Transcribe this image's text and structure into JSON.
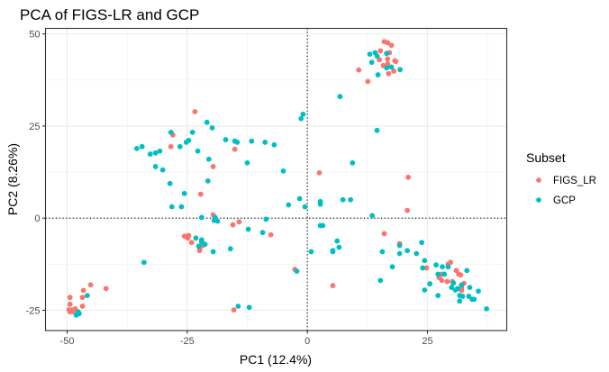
{
  "chart_data": {
    "type": "scatter",
    "title": "PCA of FIGS-LR and GCP",
    "xlabel": "PC1 (12.4%)",
    "ylabel": "PC2 (8.26%)",
    "xlim": [
      -54.5,
      41.5
    ],
    "ylim": [
      -30.5,
      51.5
    ],
    "x_ticks": [
      -50,
      -25,
      0,
      25
    ],
    "x_tick_labels": [
      "-50",
      "-25",
      "0",
      "25"
    ],
    "y_ticks": [
      -25,
      0,
      25,
      50
    ],
    "y_tick_labels": [
      "-25",
      "0",
      "25",
      "50"
    ],
    "grid": true,
    "reference_lines": {
      "x": 0,
      "y": 0,
      "style": "dotted"
    },
    "legend": {
      "title": "Subset",
      "placement": "right",
      "entries": [
        {
          "label": "FIGS_LR",
          "color": "#F8766D"
        },
        {
          "label": "GCP",
          "color": "#00BFC4"
        }
      ]
    },
    "series": [
      {
        "name": "FIGS_LR",
        "color": "#F8766D",
        "points": [
          [
            16.0,
            47.9
          ],
          [
            16.7,
            47.6
          ],
          [
            17.5,
            46.9
          ],
          [
            15.2,
            45.4
          ],
          [
            17.1,
            44.9
          ],
          [
            15.0,
            43.0
          ],
          [
            16.7,
            43.2
          ],
          [
            18.2,
            42.7
          ],
          [
            18.4,
            42.5
          ],
          [
            15.8,
            41.4
          ],
          [
            16.7,
            41.9
          ],
          [
            10.7,
            40.2
          ],
          [
            18.0,
            39.9
          ],
          [
            16.9,
            39.2
          ],
          [
            12.6,
            37.1
          ],
          [
            -23.4,
            28.9
          ],
          [
            -28.0,
            22.6
          ],
          [
            -28.4,
            19.4
          ],
          [
            -15.1,
            18.7
          ],
          [
            -19.6,
            14.0
          ],
          [
            -22.2,
            6.5
          ],
          [
            -19.6,
            0.9
          ],
          [
            2.5,
            12.3
          ],
          [
            21.0,
            11.1
          ],
          [
            20.8,
            2.1
          ],
          [
            -15.5,
            -1.8
          ],
          [
            -14.2,
            -1.0
          ],
          [
            -7.6,
            -4.5
          ],
          [
            -25.6,
            -4.9
          ],
          [
            -25.1,
            -4.9
          ],
          [
            -24.7,
            -4.7
          ],
          [
            -24.9,
            -5.4
          ],
          [
            -24.1,
            -6.6
          ],
          [
            -21.7,
            -7.4
          ],
          [
            -22.4,
            -8.3
          ],
          [
            -22.4,
            -8.8
          ],
          [
            -2.6,
            -13.9
          ],
          [
            -15.3,
            -24.9
          ],
          [
            16.0,
            -4.2
          ],
          [
            19.2,
            -6.9
          ],
          [
            5.3,
            -18.3
          ],
          [
            24.8,
            -13.5
          ],
          [
            29.3,
            -12.5
          ],
          [
            29.8,
            -12.0
          ],
          [
            31.0,
            -14.2
          ],
          [
            31.5,
            -15.2
          ],
          [
            31.9,
            -15.4
          ],
          [
            28.0,
            -15.2
          ],
          [
            27.4,
            -16.1
          ],
          [
            28.0,
            -16.9
          ],
          [
            29.1,
            -17.2
          ],
          [
            30.2,
            -17.2
          ],
          [
            32.6,
            -17.7
          ],
          [
            32.1,
            -18.9
          ],
          [
            32.1,
            -19.6
          ],
          [
            -45.1,
            -18.1
          ],
          [
            -41.9,
            -19.1
          ],
          [
            -46.6,
            -19.6
          ],
          [
            -49.4,
            -21.5
          ],
          [
            -46.8,
            -21.5
          ],
          [
            -49.4,
            -23.4
          ],
          [
            -46.8,
            -23.9
          ],
          [
            -49.6,
            -24.9
          ],
          [
            -49.0,
            -24.9
          ],
          [
            -48.3,
            -24.6
          ],
          [
            -49.4,
            -25.4
          ],
          [
            -48.8,
            -25.4
          ]
        ]
      },
      {
        "name": "GCP",
        "color": "#00BFC4",
        "points": [
          [
            13.0,
            44.5
          ],
          [
            14.1,
            44.9
          ],
          [
            14.5,
            44.0
          ],
          [
            16.5,
            44.7
          ],
          [
            13.4,
            42.3
          ],
          [
            16.5,
            40.8
          ],
          [
            17.5,
            41.0
          ],
          [
            19.3,
            40.3
          ],
          [
            14.7,
            38.9
          ],
          [
            6.8,
            33.0
          ],
          [
            -1.3,
            27.0
          ],
          [
            -0.9,
            28.2
          ],
          [
            14.5,
            23.8
          ],
          [
            9.4,
            15.0
          ],
          [
            -20.9,
            26.0
          ],
          [
            -19.8,
            24.5
          ],
          [
            -28.4,
            23.3
          ],
          [
            -23.9,
            23.3
          ],
          [
            -25.2,
            20.6
          ],
          [
            -24.7,
            21.1
          ],
          [
            -35.5,
            18.9
          ],
          [
            -34.4,
            19.4
          ],
          [
            -32.7,
            17.4
          ],
          [
            -31.6,
            17.7
          ],
          [
            -30.7,
            18.2
          ],
          [
            -26.5,
            19.4
          ],
          [
            -22.8,
            18.2
          ],
          [
            -17.0,
            21.3
          ],
          [
            -15.1,
            20.9
          ],
          [
            -14.6,
            20.6
          ],
          [
            -11.6,
            20.9
          ],
          [
            -8.8,
            20.6
          ],
          [
            -6.9,
            19.9
          ],
          [
            -20.5,
            16.0
          ],
          [
            -12.5,
            15.0
          ],
          [
            -31.6,
            14.0
          ],
          [
            -30.1,
            13.1
          ],
          [
            -5.0,
            12.8
          ],
          [
            -28.6,
            9.4
          ],
          [
            -20.7,
            10.1
          ],
          [
            -25.6,
            6.7
          ],
          [
            -28.2,
            3.1
          ],
          [
            -26.2,
            3.1
          ],
          [
            -3.9,
            3.6
          ],
          [
            -1.6,
            5.3
          ],
          [
            -0.5,
            3.1
          ],
          [
            2.7,
            4.5
          ],
          [
            2.7,
            3.8
          ],
          [
            7.4,
            5.0
          ],
          [
            9.0,
            5.0
          ],
          [
            -22.0,
            0.2
          ],
          [
            -19.2,
            0.2
          ],
          [
            -19.4,
            -0.6
          ],
          [
            -18.7,
            -0.8
          ],
          [
            -8.6,
            -0.3
          ],
          [
            13.5,
            0.7
          ],
          [
            -12.3,
            -3.0
          ],
          [
            -9.3,
            -3.9
          ],
          [
            -23.2,
            -5.4
          ],
          [
            -22.0,
            -5.9
          ],
          [
            -22.0,
            -6.4
          ],
          [
            -22.6,
            -7.6
          ],
          [
            -21.3,
            -7.1
          ],
          [
            -19.6,
            -9.1
          ],
          [
            -16.0,
            -8.3
          ],
          [
            -34.0,
            -12.0
          ],
          [
            -2.2,
            -14.4
          ],
          [
            -14.4,
            -23.9
          ],
          [
            -12.1,
            -24.2
          ],
          [
            2.7,
            -2.0
          ],
          [
            3.2,
            -2.0
          ],
          [
            6.2,
            -6.2
          ],
          [
            6.6,
            -7.9
          ],
          [
            5.3,
            -8.8
          ],
          [
            5.3,
            -9.1
          ],
          [
            0.8,
            -9.1
          ],
          [
            15.6,
            -9.1
          ],
          [
            19.2,
            -7.4
          ],
          [
            19.2,
            -9.6
          ],
          [
            20.8,
            -8.8
          ],
          [
            22.7,
            -9.6
          ],
          [
            23.8,
            -6.6
          ],
          [
            24.4,
            -11.5
          ],
          [
            24.0,
            -13.5
          ],
          [
            17.7,
            -13.2
          ],
          [
            15.2,
            -16.9
          ],
          [
            24.4,
            -19.5
          ],
          [
            26.8,
            -12.7
          ],
          [
            28.1,
            -13.2
          ],
          [
            29.3,
            -13.2
          ],
          [
            33.2,
            -14.2
          ],
          [
            27.2,
            -15.2
          ],
          [
            28.5,
            -15.2
          ],
          [
            30.4,
            -17.6
          ],
          [
            32.1,
            -18.1
          ],
          [
            25.5,
            -17.8
          ],
          [
            30.0,
            -18.8
          ],
          [
            30.8,
            -19.5
          ],
          [
            31.3,
            -19.1
          ],
          [
            33.8,
            -18.8
          ],
          [
            35.6,
            -19.8
          ],
          [
            27.2,
            -21.0
          ],
          [
            31.7,
            -21.0
          ],
          [
            32.3,
            -21.2
          ],
          [
            33.6,
            -21.2
          ],
          [
            34.3,
            -22.0
          ],
          [
            34.7,
            -22.0
          ],
          [
            31.7,
            -22.5
          ],
          [
            37.3,
            -24.6
          ],
          [
            -45.8,
            -21.0
          ],
          [
            -47.7,
            -25.4
          ],
          [
            -47.5,
            -25.9
          ],
          [
            -48.1,
            -26.3
          ]
        ]
      }
    ]
  }
}
